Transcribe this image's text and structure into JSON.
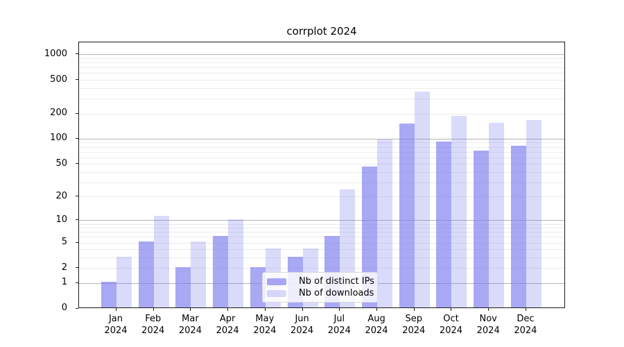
{
  "chart_data": {
    "type": "bar",
    "title": "corrplot 2024",
    "categories": [
      "Jan 2024",
      "Feb 2024",
      "Mar 2024",
      "Apr 2024",
      "May 2024",
      "Jun 2024",
      "Jul 2024",
      "Aug 2024",
      "Sep 2024",
      "Oct 2024",
      "Nov 2024",
      "Dec 2024"
    ],
    "series": [
      {
        "name": "Nb of distinct IPs",
        "color": "rgba(123,123,240,0.66)",
        "values": [
          1,
          5,
          2,
          6,
          2,
          3,
          6,
          45,
          147,
          90,
          70,
          80
        ]
      },
      {
        "name": "Nb of downloads",
        "color": "rgba(123,123,240,0.28)",
        "values": [
          3,
          11,
          5,
          10,
          4,
          4,
          24,
          96,
          355,
          182,
          150,
          163
        ]
      }
    ],
    "xlabel": "",
    "ylabel": "",
    "yscale": "log10(value+1)",
    "ytick_labels": [
      0,
      1,
      2,
      5,
      10,
      20,
      50,
      100,
      200,
      500,
      1000
    ],
    "ylim": [
      0,
      1404
    ],
    "grid": true,
    "gridlines_major": [
      1,
      10,
      100,
      1000
    ],
    "gridlines_minor": [
      2,
      3,
      4,
      5,
      6,
      7,
      8,
      9,
      20,
      30,
      40,
      50,
      60,
      70,
      80,
      90,
      200,
      300,
      400,
      500,
      600,
      700,
      800,
      900
    ],
    "legend_position": "lower center"
  },
  "colors": {
    "bar_ips": "rgba(123,123,240,0.66)",
    "bar_ips_hex_on_white": "#a8a8f5",
    "bar_downloads": "rgba(123,123,240,0.28)",
    "bar_downloads_hex_on_white": "#dadaf9",
    "grid_major": "#b3b3b3",
    "grid_minor": "#ebebeb",
    "spine": "#1a1a1a",
    "background": "#ffffff",
    "text": "#000000"
  }
}
